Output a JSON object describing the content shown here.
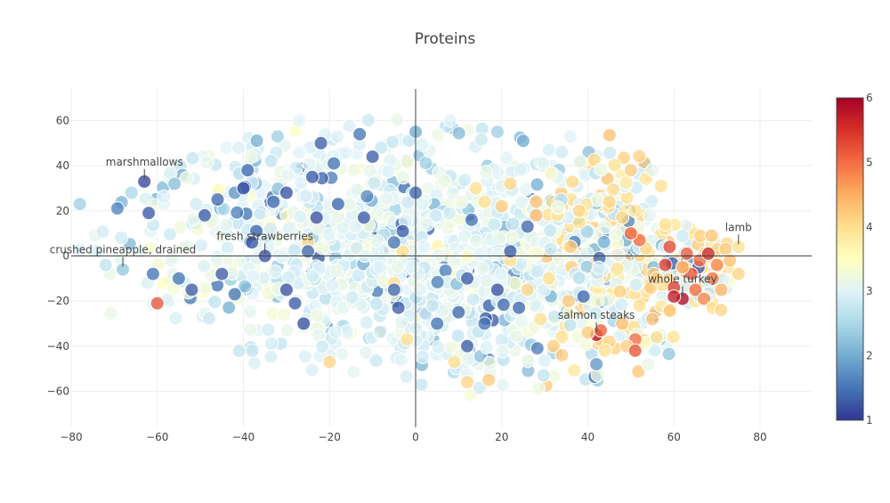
{
  "chart_data": {
    "type": "scatter",
    "title": "Proteins",
    "xlabel": "",
    "ylabel": "",
    "xlim": [
      -80,
      92
    ],
    "ylim": [
      -76,
      74
    ],
    "x_ticks": [
      -80,
      -60,
      -40,
      -20,
      0,
      20,
      40,
      60,
      80
    ],
    "y_ticks": [
      -60,
      -40,
      -20,
      0,
      20,
      40,
      60
    ],
    "grid": true,
    "colorscale": {
      "name": "RdYlBu (reversed)",
      "min": 1,
      "max": 6,
      "ticks": [
        1,
        2,
        3,
        4,
        5,
        6
      ],
      "stops": [
        [
          0.0,
          "#313695"
        ],
        [
          0.1,
          "#4575b4"
        ],
        [
          0.2,
          "#74add1"
        ],
        [
          0.3,
          "#abd9e9"
        ],
        [
          0.4,
          "#e0f3f8"
        ],
        [
          0.5,
          "#ffffbf"
        ],
        [
          0.6,
          "#fee090"
        ],
        [
          0.7,
          "#fdae61"
        ],
        [
          0.8,
          "#f46d43"
        ],
        [
          0.9,
          "#d73027"
        ],
        [
          1.0,
          "#a50026"
        ]
      ]
    },
    "cloud": {
      "description_count": 1500,
      "seed": 20240611,
      "regions": [
        {
          "cx": -20,
          "cy": 10,
          "sx": 30,
          "sy": 24,
          "w": 0.42
        },
        {
          "cx": 15,
          "cy": -5,
          "sx": 22,
          "sy": 26,
          "w": 0.33
        },
        {
          "cx": 45,
          "cy": 10,
          "sx": 12,
          "sy": 20,
          "w": 0.15
        },
        {
          "cx": 55,
          "cy": -25,
          "sx": 10,
          "sy": 12,
          "w": 0.05
        },
        {
          "cx": 65,
          "cy": -5,
          "sx": 6,
          "sy": 10,
          "w": 0.05
        }
      ]
    },
    "points": [
      {
        "x": -63,
        "y": 33,
        "v": 1.1,
        "label": "marshmallows"
      },
      {
        "x": -68,
        "y": -6,
        "v": 2.3,
        "label": "crushed pineapple, drained"
      },
      {
        "x": -35,
        "y": 0,
        "v": 1.2,
        "label": "fresh strawberries"
      },
      {
        "x": 75,
        "y": 4,
        "v": 4.0,
        "label": "lamb"
      },
      {
        "x": 62,
        "y": -19,
        "v": 5.9,
        "label": "whole turkey"
      },
      {
        "x": 42,
        "y": -35,
        "v": 5.8,
        "label": "salmon steaks"
      },
      {
        "x": -60,
        "y": -21,
        "v": 5.2
      },
      {
        "x": -72,
        "y": -4,
        "v": 2.7
      },
      {
        "x": -74,
        "y": 2,
        "v": 2.9
      },
      {
        "x": -78,
        "y": 23,
        "v": 2.4
      },
      {
        "x": -66,
        "y": 28,
        "v": 2.5
      },
      {
        "x": -62,
        "y": 19,
        "v": 1.3
      },
      {
        "x": -56,
        "y": 32,
        "v": 2.2
      },
      {
        "x": -39,
        "y": 38,
        "v": 1.4
      },
      {
        "x": -42,
        "y": 28,
        "v": 1.8
      },
      {
        "x": -27,
        "y": 60,
        "v": 3.0
      },
      {
        "x": -22,
        "y": 50,
        "v": 1.3
      },
      {
        "x": -13,
        "y": 54,
        "v": 1.5
      },
      {
        "x": -8,
        "y": 48,
        "v": 2.8
      },
      {
        "x": 0,
        "y": 55,
        "v": 2.0
      },
      {
        "x": 8,
        "y": 60,
        "v": 3.0
      },
      {
        "x": 19,
        "y": 55,
        "v": 2.4
      },
      {
        "x": 25,
        "y": 51,
        "v": 2.0
      },
      {
        "x": 31,
        "y": 47,
        "v": 2.9
      },
      {
        "x": 36,
        "y": 53,
        "v": 3.0
      },
      {
        "x": 50,
        "y": 38,
        "v": 4.2
      },
      {
        "x": 55,
        "y": 38,
        "v": 3.1
      },
      {
        "x": 57,
        "y": 31,
        "v": 4.0
      },
      {
        "x": 45,
        "y": 24,
        "v": 4.1
      },
      {
        "x": 38,
        "y": 15,
        "v": 4.0
      },
      {
        "x": 28,
        "y": 24,
        "v": 4.3
      },
      {
        "x": 22,
        "y": 32,
        "v": 4.1
      },
      {
        "x": 14,
        "y": 30,
        "v": 4.0
      },
      {
        "x": 48,
        "y": 17,
        "v": 4.1
      },
      {
        "x": 51,
        "y": 20,
        "v": 3.9
      },
      {
        "x": 58,
        "y": 12,
        "v": 4.0
      },
      {
        "x": 59,
        "y": 4,
        "v": 5.3
      },
      {
        "x": 63,
        "y": 1,
        "v": 5.1
      },
      {
        "x": 58,
        "y": -4,
        "v": 5.4
      },
      {
        "x": 66,
        "y": -2,
        "v": 5.0
      },
      {
        "x": 68,
        "y": 1,
        "v": 5.6
      },
      {
        "x": 70,
        "y": -4,
        "v": 4.8
      },
      {
        "x": 64,
        "y": -8,
        "v": 5.2
      },
      {
        "x": 69,
        "y": -10,
        "v": 4.9
      },
      {
        "x": 71,
        "y": -15,
        "v": 4.4
      },
      {
        "x": 65,
        "y": -15,
        "v": 5.0
      },
      {
        "x": 60,
        "y": -14,
        "v": 5.4
      },
      {
        "x": 67,
        "y": -19,
        "v": 4.8
      },
      {
        "x": 69,
        "y": -23,
        "v": 4.0
      },
      {
        "x": 71,
        "y": -24,
        "v": 4.1
      },
      {
        "x": 60,
        "y": -18,
        "v": 5.7
      },
      {
        "x": 62,
        "y": -5,
        "v": 4.6
      },
      {
        "x": 72,
        "y": 3,
        "v": 4.2
      },
      {
        "x": 73,
        "y": -2,
        "v": 4.3
      },
      {
        "x": 58,
        "y": 14,
        "v": 3.9
      },
      {
        "x": 52,
        "y": 7,
        "v": 5.0
      },
      {
        "x": 56,
        "y": -10,
        "v": 4.2
      },
      {
        "x": 52,
        "y": -22,
        "v": 4.0
      },
      {
        "x": 55,
        "y": -28,
        "v": 4.3
      },
      {
        "x": 56,
        "y": -36,
        "v": 4.0
      },
      {
        "x": 51,
        "y": -37,
        "v": 5.0
      },
      {
        "x": 49,
        "y": -40,
        "v": 4.2
      },
      {
        "x": 45,
        "y": -38,
        "v": 4.1
      },
      {
        "x": 43,
        "y": -33,
        "v": 5.1
      },
      {
        "x": 40,
        "y": -34,
        "v": 4.2
      },
      {
        "x": 48,
        "y": -30,
        "v": 4.3
      },
      {
        "x": 44,
        "y": -42,
        "v": 4.0
      },
      {
        "x": 51,
        "y": -42,
        "v": 5.2
      },
      {
        "x": 34,
        "y": -36,
        "v": 4.0
      },
      {
        "x": 32,
        "y": -40,
        "v": 4.2
      },
      {
        "x": 29,
        "y": -28,
        "v": 4.0
      },
      {
        "x": 26,
        "y": -15,
        "v": 4.1
      },
      {
        "x": 31,
        "y": -10,
        "v": 4.0
      },
      {
        "x": 22,
        "y": -2,
        "v": 4.0
      },
      {
        "x": 36,
        "y": 4,
        "v": 4.2
      },
      {
        "x": 28,
        "y": 18,
        "v": 4.4
      },
      {
        "x": 20,
        "y": 22,
        "v": 4.2
      },
      {
        "x": 16,
        "y": 24,
        "v": 4.0
      },
      {
        "x": 38,
        "y": 20,
        "v": 4.1
      },
      {
        "x": 50,
        "y": 10,
        "v": 5.1
      },
      {
        "x": -3,
        "y": 2,
        "v": 4.0
      },
      {
        "x": -25,
        "y": 6,
        "v": 4.1
      },
      {
        "x": -5,
        "y": -12,
        "v": 4.0
      },
      {
        "x": -2,
        "y": -37,
        "v": 4.0
      },
      {
        "x": -20,
        "y": -47,
        "v": 4.1
      },
      {
        "x": 9,
        "y": -47,
        "v": 4.0
      },
      {
        "x": 17,
        "y": -55,
        "v": 4.2
      },
      {
        "x": 12,
        "y": -56,
        "v": 4.1
      },
      {
        "x": 34,
        "y": -44,
        "v": 4.2
      },
      {
        "x": -26,
        "y": -30,
        "v": 1.2
      },
      {
        "x": -40,
        "y": 30,
        "v": 1.2
      },
      {
        "x": -37,
        "y": 11,
        "v": 1.4
      },
      {
        "x": -52,
        "y": -15,
        "v": 1.3
      },
      {
        "x": -55,
        "y": -10,
        "v": 1.5
      },
      {
        "x": -45,
        "y": -8,
        "v": 1.3
      },
      {
        "x": -42,
        "y": -17,
        "v": 1.5
      },
      {
        "x": -30,
        "y": -15,
        "v": 1.2
      },
      {
        "x": -28,
        "y": -21,
        "v": 1.3
      },
      {
        "x": -18,
        "y": 23,
        "v": 1.4
      },
      {
        "x": -12,
        "y": 17,
        "v": 1.3
      },
      {
        "x": -23,
        "y": 17,
        "v": 1.2
      },
      {
        "x": -33,
        "y": 24,
        "v": 1.4
      },
      {
        "x": -10,
        "y": 44,
        "v": 1.3
      },
      {
        "x": -19,
        "y": 41,
        "v": 1.5
      },
      {
        "x": -5,
        "y": 6,
        "v": 1.5
      },
      {
        "x": -3,
        "y": 11,
        "v": 1.3
      },
      {
        "x": -5,
        "y": -15,
        "v": 1.4
      },
      {
        "x": -4,
        "y": -23,
        "v": 1.3
      },
      {
        "x": 10,
        "y": -25,
        "v": 1.4
      },
      {
        "x": 12,
        "y": -10,
        "v": 1.3
      },
      {
        "x": 19,
        "y": -15,
        "v": 1.2
      },
      {
        "x": 16,
        "y": -30,
        "v": 1.5
      },
      {
        "x": 24,
        "y": -23,
        "v": 1.4
      },
      {
        "x": 12,
        "y": -40,
        "v": 1.3
      },
      {
        "x": 13,
        "y": 16,
        "v": 1.5
      },
      {
        "x": 26,
        "y": 13,
        "v": 1.4
      },
      {
        "x": 22,
        "y": 2,
        "v": 1.3
      },
      {
        "x": 39,
        "y": -18,
        "v": 1.4
      },
      {
        "x": -38,
        "y": 6,
        "v": 1.3
      },
      {
        "x": -25,
        "y": 2,
        "v": 1.4
      },
      {
        "x": -30,
        "y": 28,
        "v": 1.2
      },
      {
        "x": -24,
        "y": 35,
        "v": 1.3
      },
      {
        "x": -61,
        "y": -8,
        "v": 1.5
      },
      {
        "x": -49,
        "y": 18,
        "v": 1.3
      },
      {
        "x": -46,
        "y": 25,
        "v": 1.4
      },
      {
        "x": 42,
        "y": -48,
        "v": 1.8
      },
      {
        "x": 5,
        "y": -30,
        "v": 1.5
      },
      {
        "x": 0,
        "y": 28,
        "v": 1.4
      }
    ],
    "annotations": [
      {
        "text": "marshmallows",
        "x": -63,
        "y": 33
      },
      {
        "text": "crushed pineapple, drained",
        "x": -68,
        "y": -6
      },
      {
        "text": "fresh strawberries",
        "x": -35,
        "y": 0
      },
      {
        "text": "lamb",
        "x": 75,
        "y": 4
      },
      {
        "text": "whole turkey",
        "x": 62,
        "y": -19
      },
      {
        "text": "salmon steaks",
        "x": 42,
        "y": -35
      }
    ]
  }
}
